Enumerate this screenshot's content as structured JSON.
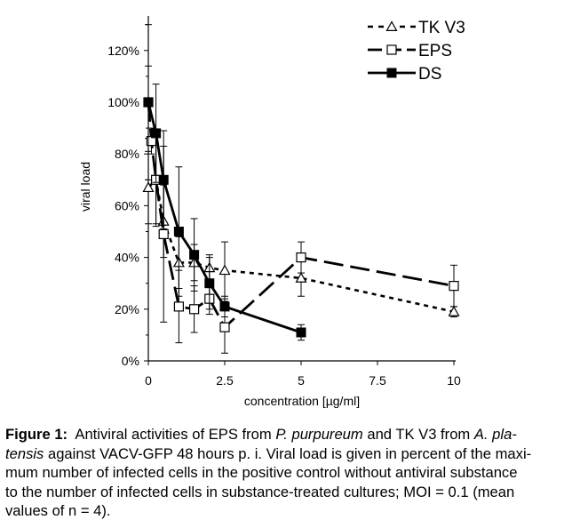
{
  "chart_data": {
    "type": "line",
    "xlabel": "concentration [µg/ml]",
    "ylabel": "viral load",
    "xlim": [
      0,
      10
    ],
    "ylim": [
      0,
      130
    ],
    "x_ticks": [
      0,
      2.5,
      5,
      7.5,
      10
    ],
    "x_tick_labels": [
      "0",
      "2.5",
      "5",
      "7.5",
      "10"
    ],
    "y_ticks": [
      0,
      20,
      40,
      60,
      80,
      100,
      120
    ],
    "y_tick_labels": [
      "0%",
      "20%",
      "40%",
      "60%",
      "80%",
      "100%",
      "120%"
    ],
    "legend_position": "top-right",
    "series": [
      {
        "name": "TK V3",
        "style": "short-dash",
        "marker": "open-triangle",
        "x": [
          0,
          0.25,
          0.5,
          1,
          1.5,
          2,
          2.5,
          5,
          10
        ],
        "y": [
          67,
          70,
          54,
          38,
          38,
          36,
          35,
          32,
          19
        ],
        "err": [
          14,
          17,
          14,
          10,
          7,
          5,
          11,
          7,
          2
        ]
      },
      {
        "name": "EPS",
        "style": "long-dash",
        "marker": "open-square",
        "x": [
          0,
          0.1,
          0.25,
          0.5,
          1,
          1.5,
          2,
          2.5,
          5,
          10
        ],
        "y": [
          100,
          85,
          70,
          49,
          21,
          20,
          24,
          13,
          40,
          29
        ],
        "err": [
          14,
          5,
          18,
          34,
          14,
          9,
          6,
          10,
          6,
          8
        ]
      },
      {
        "name": "DS",
        "style": "solid",
        "marker": "filled-square",
        "x": [
          0,
          0.25,
          0.5,
          1,
          1.5,
          2,
          2.5,
          5
        ],
        "y": [
          100,
          88,
          70,
          50,
          41,
          30,
          21,
          11
        ],
        "err": [
          30,
          19,
          19,
          25,
          14,
          10,
          4,
          3
        ]
      }
    ]
  },
  "caption": {
    "figure_label": "Figure 1:",
    "text_1": "Antiviral activities of EPS from ",
    "species_1": "P. purpureum",
    "text_2": " and TK V3 from ",
    "species_2_part1": "A. pla-",
    "species_2_part2": "tensis",
    "text_3": " against VACV-GFP 48 hours p. i. Viral load is given in percent of the maxi-",
    "line_3": "mum number of infected cells in the positive control without antiviral substance",
    "line_4": "to the number of infected cells in substance-treated cultures; MOI = 0.1  (mean",
    "line_5": "values of n = 4)."
  }
}
